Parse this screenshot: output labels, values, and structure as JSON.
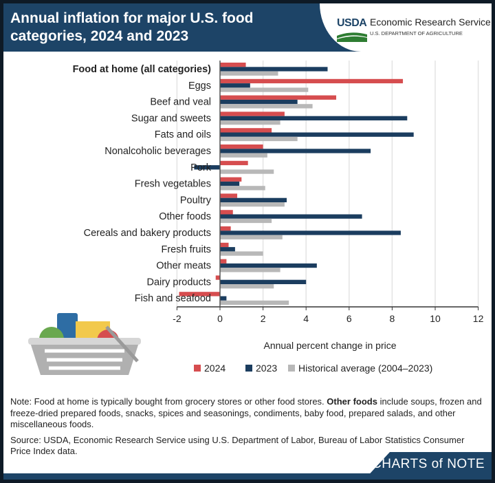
{
  "header": {
    "title": "Annual inflation for major U.S. food categories, 2024 and 2023",
    "logo_text": "USDA",
    "agency": "Economic Research Service",
    "department": "U.S. DEPARTMENT OF AGRICULTURE"
  },
  "chart_data": {
    "type": "bar",
    "orientation": "horizontal",
    "title": "Annual inflation for major U.S. food categories, 2024 and 2023",
    "xlabel": "Annual percent change in price",
    "ylabel": "",
    "xlim": [
      -2,
      12
    ],
    "xticks": [
      "-2",
      "0",
      "2",
      "4",
      "6",
      "8",
      "10",
      "12"
    ],
    "grid": true,
    "legend_position": "bottom",
    "categories": [
      "Food at home (all categories)",
      "Eggs",
      "Beef and veal",
      "Sugar and sweets",
      "Fats and oils",
      "Nonalcoholic beverages",
      "Pork",
      "Fresh vegetables",
      "Poultry",
      "Other foods",
      "Cereals and bakery products",
      "Fresh fruits",
      "Other meats",
      "Dairy products",
      "Fish and seafood"
    ],
    "series": [
      {
        "name": "2024",
        "color": "#d64d4f",
        "values": [
          1.2,
          8.5,
          5.4,
          3.0,
          2.4,
          2.0,
          1.3,
          1.0,
          0.8,
          0.6,
          0.5,
          0.4,
          0.3,
          -0.2,
          -1.9
        ]
      },
      {
        "name": "2023",
        "color": "#1b3d5f",
        "values": [
          5.0,
          1.4,
          3.6,
          8.7,
          9.0,
          7.0,
          -1.2,
          0.9,
          3.1,
          6.6,
          8.4,
          0.7,
          4.5,
          4.0,
          0.3
        ]
      },
      {
        "name": "Historical average (2004–2023)",
        "color": "#b8b8b8",
        "values": [
          2.7,
          4.1,
          4.3,
          2.8,
          3.6,
          2.2,
          2.5,
          2.1,
          3.0,
          2.4,
          2.9,
          2.0,
          2.8,
          2.5,
          3.2
        ]
      }
    ]
  },
  "notes": {
    "note_prefix": "Note: Food at home is typically bought from grocery stores or other food stores. ",
    "note_bold": "Other foods",
    "note_rest": " include soups, frozen and freeze-dried prepared foods, snacks, spices and seasonings, condiments, baby food, prepared salads, and other miscellaneous foods.",
    "source": "Source: USDA, Economic Research Service using U.S. Department of Labor, Bureau of Labor Statistics Consumer Price Index data."
  },
  "footer": {
    "brand": "CHARTS of NOTE"
  }
}
